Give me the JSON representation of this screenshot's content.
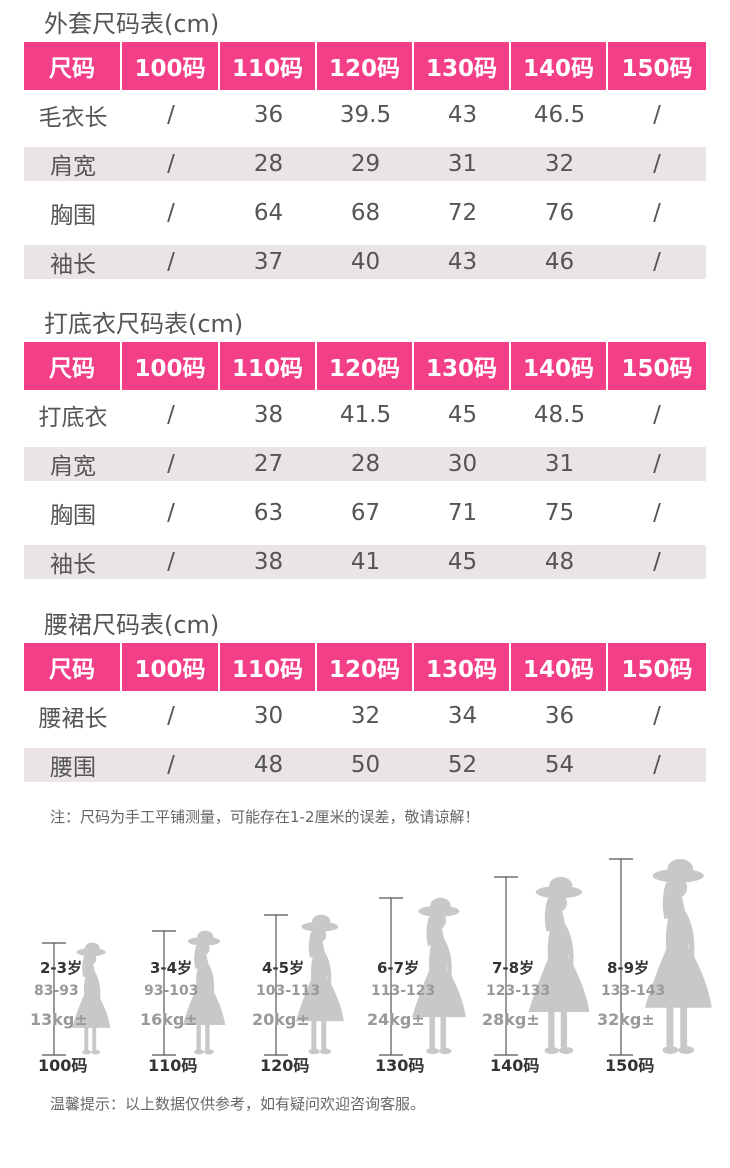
{
  "tables": [
    {
      "title": "外套尺码表(cm)",
      "headers": [
        "尺码",
        "100码",
        "110码",
        "120码",
        "130码",
        "140码",
        "150码"
      ],
      "rows": [
        [
          "毛衣长",
          "/",
          "36",
          "39.5",
          "43",
          "46.5",
          "/"
        ],
        [
          "肩宽",
          "/",
          "28",
          "29",
          "31",
          "32",
          "/"
        ],
        [
          "胸围",
          "/",
          "64",
          "68",
          "72",
          "76",
          "/"
        ],
        [
          "袖长",
          "/",
          "37",
          "40",
          "43",
          "46",
          "/"
        ]
      ]
    },
    {
      "title": "打底衣尺码表(cm)",
      "headers": [
        "尺码",
        "100码",
        "110码",
        "120码",
        "130码",
        "140码",
        "150码"
      ],
      "rows": [
        [
          "打底衣",
          "/",
          "38",
          "41.5",
          "45",
          "48.5",
          "/"
        ],
        [
          "肩宽",
          "/",
          "27",
          "28",
          "30",
          "31",
          "/"
        ],
        [
          "胸围",
          "/",
          "63",
          "67",
          "71",
          "75",
          "/"
        ],
        [
          "袖长",
          "/",
          "38",
          "41",
          "45",
          "48",
          "/"
        ]
      ]
    },
    {
      "title": "腰裙尺码表(cm)",
      "headers": [
        "尺码",
        "100码",
        "110码",
        "120码",
        "130码",
        "140码",
        "150码"
      ],
      "rows": [
        [
          "腰裙长",
          "/",
          "30",
          "32",
          "34",
          "36",
          "/"
        ],
        [
          "腰围",
          "/",
          "48",
          "50",
          "52",
          "54",
          "/"
        ]
      ]
    }
  ],
  "note": "注：尺码为手工平铺测量，可能存在1-2厘米的误差，敬请谅解！",
  "figures": [
    {
      "age": "2-3岁",
      "range": "83-93",
      "weight": "13kg±",
      "size": "100码"
    },
    {
      "age": "3-4岁",
      "range": "93-103",
      "weight": "16kg±",
      "size": "110码"
    },
    {
      "age": "4-5岁",
      "range": "103-113",
      "weight": "20kg±",
      "size": "120码"
    },
    {
      "age": "6-7岁",
      "range": "113-123",
      "weight": "24kg±",
      "size": "130码"
    },
    {
      "age": "7-8岁",
      "range": "123-133",
      "weight": "28kg±",
      "size": "140码"
    },
    {
      "age": "8-9岁",
      "range": "133-143",
      "weight": "32kg±",
      "size": "150码"
    }
  ],
  "tip": "温馨提示：以上数据仅供参考，如有疑问欢迎咨询客服。",
  "colors": {
    "header_bg": "#f23f88",
    "alt_row_bg": "#eae4e4",
    "silhouette": "#c8c8c8"
  },
  "icons": {
    "silhouette": "girl-silhouette-icon"
  }
}
